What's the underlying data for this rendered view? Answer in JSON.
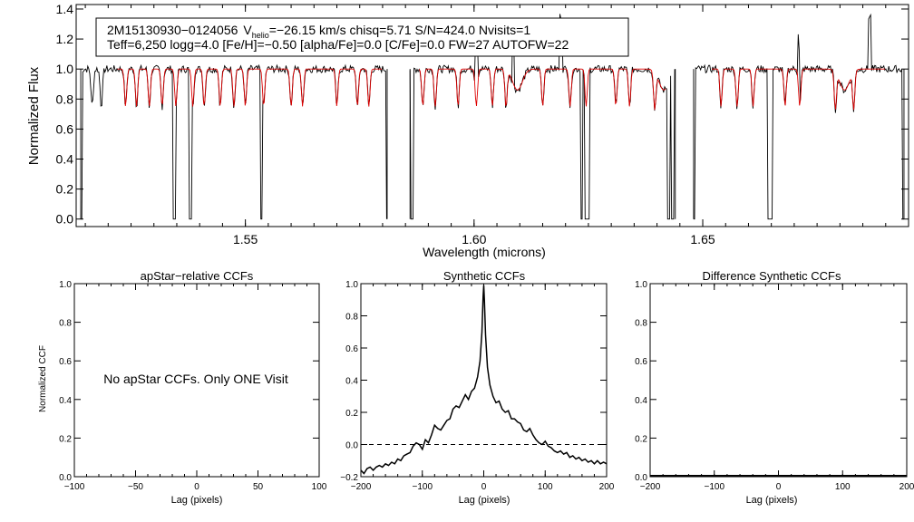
{
  "spectrum": {
    "ylabel": "Normalized Flux",
    "xlabel": "Wavelength (microns)",
    "xticks": [
      "1.55",
      "1.60",
      "1.65"
    ],
    "yticks": [
      "0.0",
      "0.2",
      "0.4",
      "0.6",
      "0.8",
      "1.0",
      "1.2",
      "1.4"
    ],
    "info_line1": {
      "star": "2M15130930−0124056",
      "v": "V",
      "v_sub": "helio",
      "v_rest": "=−26.15 km/s  chisq=5.71  S/N=424.0  Nvisits=1"
    },
    "info_line2": "Teff=6,250 logg=4.0 [Fe/H]=−0.50 [alpha/Fe]=0.0 [C/Fe]=0.0 FW=27 AUTOFW=22",
    "colors": {
      "observed": "#000000",
      "model": "#dd0000"
    }
  },
  "panel1": {
    "title": "apStar−relative CCFs",
    "ylabel": "Normalized CCF",
    "xlabel": "Lag (pixels)",
    "message": "No apStar CCFs.  Only ONE Visit",
    "xticks": [
      "−100",
      "−50",
      "0",
      "50",
      "100"
    ],
    "yticks": [
      "0.0",
      "0.2",
      "0.4",
      "0.6",
      "0.8",
      "1.0"
    ]
  },
  "panel2": {
    "title": "Synthetic CCFs",
    "xlabel": "Lag (pixels)",
    "xticks": [
      "−200",
      "−100",
      "0",
      "100",
      "200"
    ],
    "yticks": [
      "−0.2",
      "0.0",
      "0.2",
      "0.4",
      "0.6",
      "0.8",
      "1.0"
    ]
  },
  "panel3": {
    "title": "Difference Synthetic CCFs",
    "xlabel": "Lag (pixels)",
    "xticks": [
      "−200",
      "−100",
      "0",
      "100",
      "200"
    ],
    "yticks": [
      "0.0",
      "0.2",
      "0.4",
      "0.6",
      "0.8",
      "1.0"
    ]
  },
  "chart_data": [
    {
      "type": "line",
      "title": "",
      "xlabel": "Wavelength (microns)",
      "ylabel": "Normalized Flux",
      "xlim": [
        1.513,
        1.695
      ],
      "ylim": [
        -0.05,
        1.43
      ],
      "series": [
        {
          "segments": [
            [
              1.514,
              1.581
            ],
            [
              1.586,
              1.644
            ],
            [
              1.648,
              1.694
            ]
          ]
        },
        {
          "segments": [
            [
              1.522,
              1.58
            ],
            [
              1.588,
              1.642
            ],
            [
              1.652,
              1.69
            ]
          ]
        }
      ],
      "absorption_lines": [
        1.5165,
        1.5185,
        1.5238,
        1.5262,
        1.529,
        1.5318,
        1.5348,
        1.5385,
        1.541,
        1.5445,
        1.5475,
        1.55,
        1.554,
        1.56,
        1.5625,
        1.57,
        1.5745,
        1.577,
        1.5888,
        1.5915,
        1.5965,
        1.6005,
        1.604,
        1.607,
        1.615,
        1.621,
        1.6245,
        1.631,
        1.634,
        1.6395,
        1.654,
        1.6575,
        1.661,
        1.668,
        1.6712,
        1.679,
        1.683
      ],
      "broad_dips": [
        1.6095,
        1.6415,
        1.681
      ],
      "gaps_to_zero": [
        1.514,
        1.538,
        1.5345,
        1.5535,
        1.581,
        1.5865,
        1.6235,
        1.6245,
        1.625,
        1.6425,
        1.6435,
        1.648,
        1.6645,
        1.665,
        1.694
      ],
      "spikes": [
        1.6005,
        1.6085,
        1.619,
        1.6435,
        1.671,
        1.6865
      ]
    },
    {
      "type": "line",
      "title": "apStar−relative CCFs",
      "xlabel": "Lag (pixels)",
      "ylabel": "Normalized CCF",
      "xlim": [
        -100,
        100
      ],
      "ylim": [
        0.0,
        1.0
      ],
      "series": []
    },
    {
      "type": "line",
      "title": "Synthetic CCFs",
      "xlabel": "Lag (pixels)",
      "xlim": [
        -200,
        200
      ],
      "ylim": [
        -0.2,
        1.0
      ],
      "series": [
        {
          "x": [
            -200,
            -195,
            -190,
            -185,
            -180,
            -175,
            -170,
            -165,
            -160,
            -155,
            -150,
            -145,
            -140,
            -135,
            -130,
            -125,
            -120,
            -115,
            -110,
            -105,
            -100,
            -95,
            -90,
            -85,
            -80,
            -75,
            -70,
            -65,
            -60,
            -55,
            -50,
            -45,
            -40,
            -35,
            -30,
            -25,
            -20,
            -15,
            -10,
            -6,
            -3,
            -1,
            0,
            1,
            3,
            6,
            10,
            15,
            20,
            25,
            30,
            35,
            40,
            45,
            50,
            55,
            60,
            65,
            70,
            75,
            80,
            85,
            90,
            95,
            100,
            105,
            110,
            115,
            120,
            125,
            130,
            135,
            140,
            145,
            150,
            155,
            160,
            165,
            170,
            175,
            180,
            185,
            190,
            195,
            200
          ],
          "y": [
            -0.16,
            -0.18,
            -0.15,
            -0.14,
            -0.16,
            -0.14,
            -0.13,
            -0.14,
            -0.12,
            -0.13,
            -0.11,
            -0.12,
            -0.09,
            -0.1,
            -0.07,
            -0.06,
            -0.05,
            -0.01,
            0.01,
            0.0,
            -0.03,
            0.03,
            0.01,
            0.06,
            0.12,
            0.1,
            0.09,
            0.12,
            0.15,
            0.16,
            0.22,
            0.24,
            0.23,
            0.27,
            0.31,
            0.28,
            0.33,
            0.35,
            0.42,
            0.52,
            0.7,
            0.92,
            0.99,
            0.9,
            0.68,
            0.48,
            0.37,
            0.3,
            0.26,
            0.27,
            0.22,
            0.2,
            0.21,
            0.16,
            0.16,
            0.14,
            0.13,
            0.09,
            0.08,
            0.1,
            0.06,
            0.03,
            0.01,
            0.0,
            0.02,
            -0.01,
            -0.02,
            -0.04,
            -0.05,
            -0.04,
            -0.06,
            -0.05,
            -0.08,
            -0.07,
            -0.09,
            -0.08,
            -0.1,
            -0.09,
            -0.11,
            -0.1,
            -0.12,
            -0.1,
            -0.12,
            -0.11,
            -0.12
          ]
        },
        {
          "name": "",
          "x": [
            -200,
            200
          ],
          "y": [
            0.0,
            0.0
          ],
          "style": "dashed"
        }
      ]
    },
    {
      "type": "line",
      "title": "Difference Synthetic CCFs",
      "xlabel": "Lag (pixels)",
      "xlim": [
        -200,
        200
      ],
      "ylim": [
        0.0,
        1.0
      ],
      "series": [
        {
          "x": [
            -200,
            200
          ],
          "y": [
            0.0,
            0.0
          ]
        }
      ]
    }
  ]
}
